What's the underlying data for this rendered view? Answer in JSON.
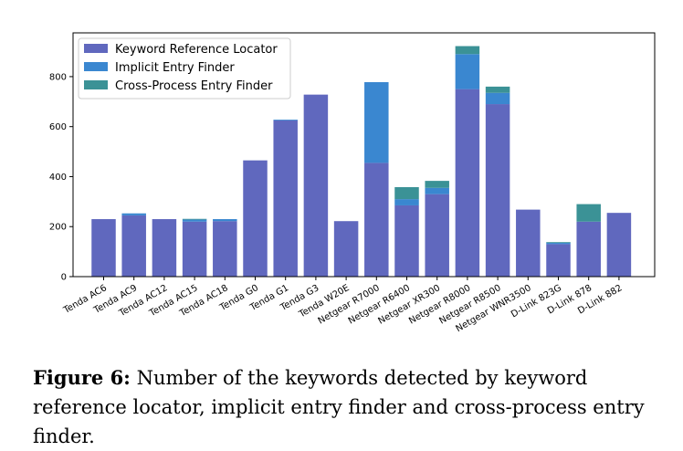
{
  "chart_data": {
    "type": "bar",
    "stacked": true,
    "categories": [
      "Tenda AC6",
      "Tenda AC9",
      "Tenda AC12",
      "Tenda AC15",
      "Tenda AC18",
      "Tenda G0",
      "Tenda G1",
      "Tenda G3",
      "Tenda W20E",
      "Netgear R7000",
      "Netgear R6400",
      "Netgear XR300",
      "Netgear R8000",
      "Netgear R8500",
      "Netgear WNR3500",
      "D-Link 823G",
      "D-Link 878",
      "D-Link 882"
    ],
    "series": [
      {
        "name": "Keyword Reference Locator",
        "color": "#6068be",
        "values": [
          230,
          245,
          230,
          220,
          222,
          465,
          625,
          728,
          222,
          455,
          285,
          330,
          750,
          690,
          268,
          130,
          220,
          255
        ]
      },
      {
        "name": "Implicit Entry Finder",
        "color": "#3a87d0",
        "values": [
          0,
          8,
          0,
          8,
          8,
          0,
          3,
          0,
          0,
          323,
          25,
          25,
          140,
          45,
          0,
          5,
          0,
          0
        ]
      },
      {
        "name": "Cross-Process Entry Finder",
        "color": "#3b9296",
        "values": [
          0,
          0,
          0,
          3,
          0,
          0,
          0,
          0,
          0,
          0,
          48,
          28,
          32,
          25,
          0,
          3,
          70,
          0
        ]
      }
    ],
    "yticks": [
      0,
      200,
      400,
      600,
      800
    ],
    "ylim": [
      0,
      975
    ],
    "legend_position": "top-left",
    "grid": false
  },
  "caption": {
    "label": "Figure 6:",
    "text": " Number of the keywords detected by keyword reference locator, implicit entry finder and cross-process entry finder."
  }
}
